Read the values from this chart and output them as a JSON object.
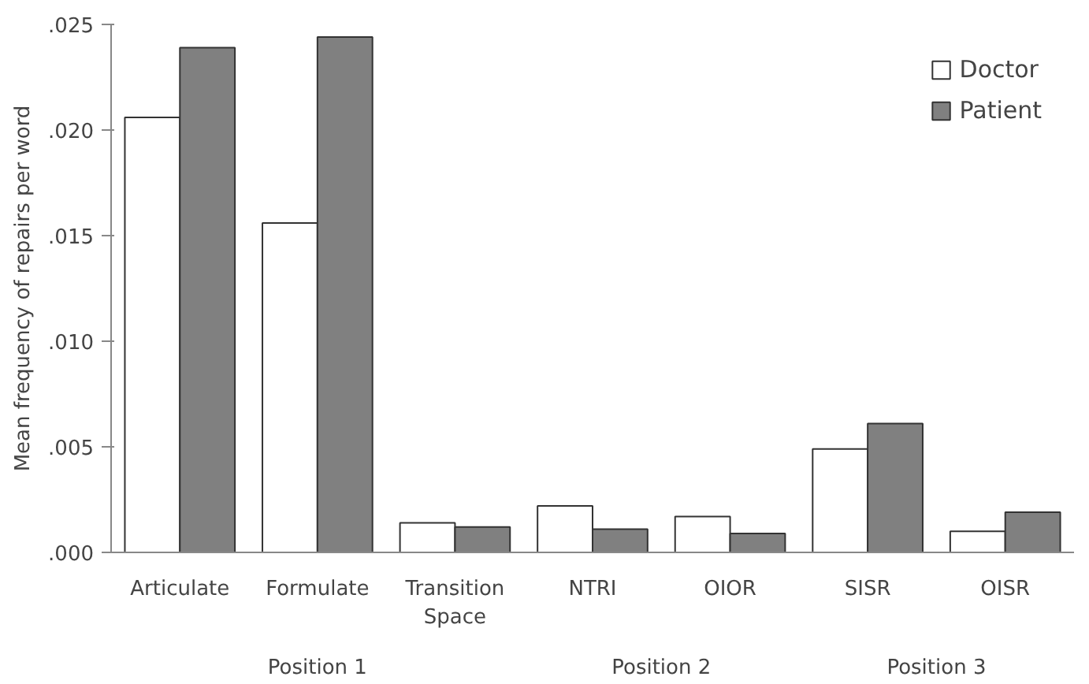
{
  "chart_data": {
    "type": "bar",
    "ylabel": "Mean frequency of repairs per word",
    "categories": [
      "Articulate",
      "Formulate",
      "Transition Space",
      "NTRI",
      "OIOR",
      "SISR",
      "OISR"
    ],
    "series": [
      {
        "name": "Doctor",
        "color": "#ffffff",
        "values": [
          0.0206,
          0.0156,
          0.0014,
          0.0022,
          0.0017,
          0.0049,
          0.001
        ]
      },
      {
        "name": "Patient",
        "color": "#808080",
        "values": [
          0.0239,
          0.0244,
          0.0012,
          0.0011,
          0.0009,
          0.0061,
          0.0019
        ]
      }
    ],
    "ylim": [
      0,
      0.025
    ],
    "yticks": [
      {
        "value": 0,
        "label": ".000"
      },
      {
        "value": 0.005,
        "label": ".005"
      },
      {
        "value": 0.01,
        "label": ".010"
      },
      {
        "value": 0.015,
        "label": ".015"
      },
      {
        "value": 0.02,
        "label": ".020"
      },
      {
        "value": 0.025,
        "label": ".025"
      }
    ],
    "annotations": [
      "Position 1",
      "Position 2",
      "Position 3"
    ],
    "legend": "top right",
    "grid": false
  }
}
